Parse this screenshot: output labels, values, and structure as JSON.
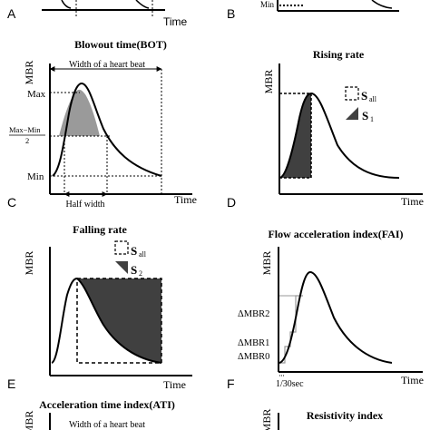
{
  "panel_letters": {
    "A": "A",
    "B": "B",
    "C": "C",
    "D": "D",
    "E": "E",
    "F": "F"
  },
  "top_strip": {
    "left_time": "Time",
    "right_min": "Min"
  },
  "panel_c": {
    "title": "Blowout time(BOT)",
    "ylabel": "MBR",
    "xlabel": "Time",
    "width_label": "Width of a heart beat",
    "max_label": "Max",
    "mid_numerator": "Max−Min",
    "mid_denominator": "2",
    "min_label": "Min",
    "half_width_label": "Half width"
  },
  "panel_d": {
    "title": "Rising rate",
    "ylabel": "MBR",
    "xlabel": "Time",
    "legend_s_all": "S",
    "legend_s_all_sub": "all",
    "legend_s1": "S",
    "legend_s1_sub": "1"
  },
  "panel_e": {
    "title": "Falling rate",
    "ylabel": "MBR",
    "xlabel": "Time",
    "legend_s_all": "S",
    "legend_s_all_sub": "all",
    "legend_s2": "S",
    "legend_s2_sub": "2"
  },
  "panel_f": {
    "title": "Flow acceleration index(FAI)",
    "ylabel": "MBR",
    "xlabel": "Time",
    "dmbr2": "ΔMBR2",
    "dmbr1": "ΔMBR1",
    "dmbr0": "ΔMBR0",
    "interval": "1/30sec"
  },
  "bottom_left": {
    "title": "Acceleration time index(ATI)",
    "ylabel": "MBR",
    "width_label": "Width of a heart beat"
  },
  "bottom_right": {
    "title": "Resistivity index",
    "ylabel": "MBR"
  },
  "colors": {
    "dark_fill": "#404040",
    "light_fill": "#9a9a9a",
    "line": "#000000"
  }
}
